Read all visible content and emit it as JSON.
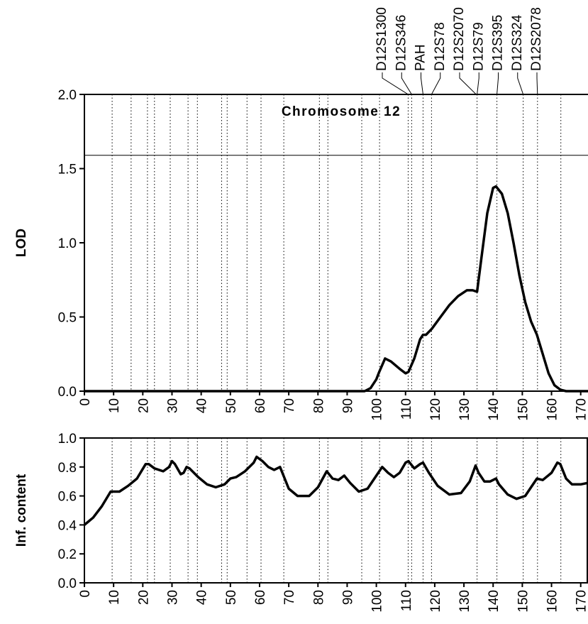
{
  "chart_data": [
    {
      "type": "line",
      "title": "Chromosome 12",
      "y_label": "LOD",
      "color": "#000000",
      "x": [
        0,
        96,
        98,
        100,
        101,
        103,
        105,
        108,
        110,
        111,
        113,
        115,
        116,
        117,
        119,
        122,
        125,
        128,
        131,
        133,
        134.5,
        136,
        138,
        140,
        141,
        143,
        145,
        147,
        149,
        151,
        153,
        155,
        157,
        159,
        161,
        163,
        165,
        172.5
      ],
      "values": [
        0,
        0,
        0.02,
        0.08,
        0.13,
        0.22,
        0.2,
        0.15,
        0.12,
        0.13,
        0.22,
        0.35,
        0.38,
        0.38,
        0.42,
        0.5,
        0.58,
        0.64,
        0.68,
        0.68,
        0.67,
        0.9,
        1.2,
        1.37,
        1.38,
        1.33,
        1.2,
        1.0,
        0.78,
        0.6,
        0.47,
        0.38,
        0.25,
        0.12,
        0.04,
        0.01,
        0,
        0
      ],
      "xlim": [
        0,
        172.5
      ],
      "xticks": [
        0,
        10,
        20,
        30,
        40,
        50,
        60,
        70,
        80,
        90,
        100,
        110,
        120,
        130,
        140,
        150,
        160,
        170
      ],
      "ylim": [
        0,
        2
      ],
      "yticks": [
        {
          "value": 0,
          "label": "0.0"
        },
        0.5,
        {
          "value": 1,
          "label": "1.0"
        },
        1.5,
        {
          "value": 2,
          "label": "2.0"
        }
      ],
      "threshold": 1.59,
      "marker_lines": [
        9.5,
        16,
        21.6,
        24,
        29.4,
        35.5,
        38.7,
        47,
        48.9,
        55.7,
        60.5,
        68.3,
        80.5,
        83.4,
        95,
        101.1,
        110.9,
        112.1,
        116,
        118.9,
        134.5,
        141.3,
        150.3,
        155.2,
        163.2
      ],
      "markers": [
        {
          "name": "D12S1300",
          "position": 110.9
        },
        {
          "name": "D12S346",
          "position": 112.1
        },
        {
          "name": "PAH",
          "position": 116
        },
        {
          "name": "D12S78",
          "position": 118.9
        },
        {
          "name": "D12S2070",
          "position": 134.2
        },
        {
          "name": "D12S79",
          "position": 134.5
        },
        {
          "name": "D12S395",
          "position": 141.3
        },
        {
          "name": "D12S324",
          "position": 150.3
        },
        {
          "name": "D12S2078",
          "position": 155.2
        }
      ]
    },
    {
      "type": "line",
      "y_label": "Inf. content",
      "color": "#000000",
      "x": [
        0,
        3,
        6,
        9,
        10,
        12,
        15,
        18,
        21,
        22,
        24,
        27,
        29,
        30,
        31,
        33,
        34,
        35,
        36,
        39,
        42,
        45,
        48,
        50,
        52,
        55,
        58,
        59,
        61,
        63,
        65,
        67,
        68,
        70,
        73,
        77,
        80,
        83,
        85,
        87,
        89,
        91,
        94,
        97,
        100,
        102,
        104,
        106,
        108,
        110,
        111,
        113,
        115,
        116,
        118,
        121,
        125,
        129,
        132,
        134,
        135,
        137,
        139,
        141,
        142,
        145,
        148,
        151,
        153,
        155,
        157,
        160,
        162,
        163,
        165,
        167,
        170,
        172.5
      ],
      "values": [
        0.4,
        0.45,
        0.53,
        0.63,
        0.63,
        0.63,
        0.67,
        0.72,
        0.82,
        0.82,
        0.79,
        0.77,
        0.8,
        0.84,
        0.82,
        0.75,
        0.76,
        0.8,
        0.79,
        0.73,
        0.68,
        0.66,
        0.68,
        0.72,
        0.73,
        0.77,
        0.83,
        0.87,
        0.84,
        0.8,
        0.78,
        0.8,
        0.75,
        0.65,
        0.6,
        0.6,
        0.66,
        0.77,
        0.72,
        0.71,
        0.74,
        0.69,
        0.63,
        0.65,
        0.74,
        0.8,
        0.76,
        0.73,
        0.76,
        0.83,
        0.84,
        0.79,
        0.82,
        0.83,
        0.76,
        0.67,
        0.61,
        0.62,
        0.7,
        0.81,
        0.76,
        0.7,
        0.7,
        0.72,
        0.68,
        0.61,
        0.58,
        0.6,
        0.66,
        0.72,
        0.71,
        0.76,
        0.83,
        0.82,
        0.72,
        0.68,
        0.68,
        0.69
      ],
      "xlim": [
        0,
        172.5
      ],
      "xticks": [
        0,
        10,
        20,
        30,
        40,
        50,
        60,
        70,
        80,
        90,
        100,
        110,
        120,
        130,
        140,
        150,
        160,
        170
      ],
      "ylim": [
        0,
        1
      ],
      "yticks": [
        {
          "value": 0,
          "label": "0.0"
        },
        0.2,
        0.4,
        0.6,
        0.8,
        {
          "value": 1,
          "label": "1.0"
        }
      ],
      "marker_lines": [
        9.5,
        16,
        21.6,
        24,
        29.4,
        35.5,
        38.7,
        47,
        48.9,
        55.7,
        60.5,
        68.3,
        80.5,
        83.4,
        95,
        101.1,
        110.9,
        112.1,
        116,
        118.9,
        134.5,
        141.3,
        150.3,
        155.2,
        163.2
      ]
    }
  ]
}
